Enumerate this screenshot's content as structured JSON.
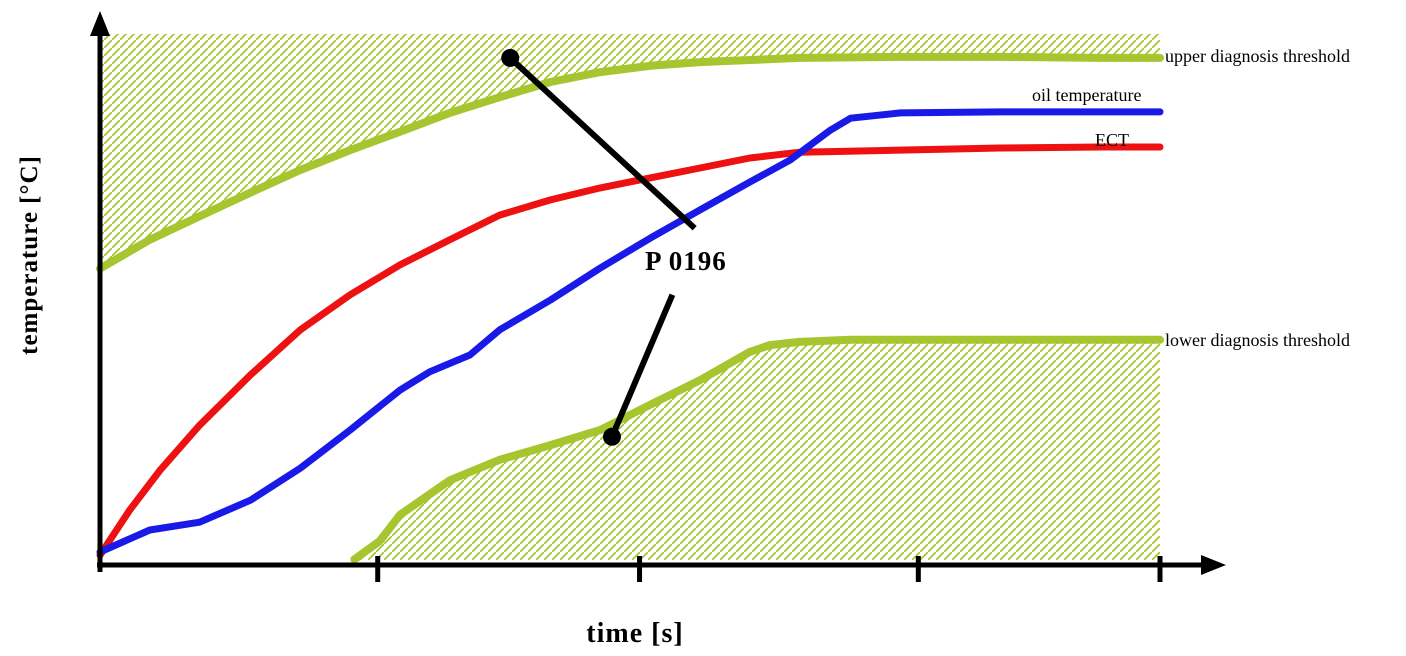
{
  "chart_data": {
    "type": "line",
    "title": "",
    "xlabel": "time [s]",
    "ylabel": "temperature [°C]",
    "xlim": [
      0,
      100
    ],
    "ylim": [
      0,
      100
    ],
    "grid": false,
    "axis_tick_labels": "none (qualitative sketch, unlabeled ticks)",
    "legend_position": "right-edge-inline-labels",
    "colors": {
      "threshold": "#a6c52f",
      "oil": "#1a1ae8",
      "ect": "#ee1111",
      "axis": "#000000"
    },
    "x_ticks": [
      26.2,
      50.9,
      77.2,
      100
    ],
    "series": [
      {
        "id": "upper-threshold",
        "label": "upper diagnosis threshold",
        "color": "#a6c52f",
        "hatch": "above",
        "points": [
          [
            0,
            56
          ],
          [
            4.7,
            61.5
          ],
          [
            9.4,
            66
          ],
          [
            14.2,
            70.5
          ],
          [
            18.9,
            74.8
          ],
          [
            23.6,
            78.6
          ],
          [
            28.3,
            82.1
          ],
          [
            33,
            85.7
          ],
          [
            37.7,
            88.7
          ],
          [
            42.5,
            91.6
          ],
          [
            47.2,
            93.5
          ],
          [
            51.9,
            94.7
          ],
          [
            56.6,
            95.4
          ],
          [
            61.3,
            95.8
          ],
          [
            66,
            96.2
          ],
          [
            75.5,
            96.4
          ],
          [
            84.9,
            96.4
          ],
          [
            94.3,
            96.2
          ],
          [
            100,
            96.2
          ]
        ]
      },
      {
        "id": "oil-temperature",
        "label": "oil temperature",
        "color": "#1a1ae8",
        "hatch": "none",
        "points": [
          [
            0,
            1.9
          ],
          [
            4.7,
            6.1
          ],
          [
            9.4,
            7.6
          ],
          [
            14.2,
            11.8
          ],
          [
            18.9,
            17.9
          ],
          [
            23.6,
            25.2
          ],
          [
            28.3,
            32.8
          ],
          [
            31.1,
            36.3
          ],
          [
            34.9,
            39.5
          ],
          [
            37.7,
            44.3
          ],
          [
            42.5,
            50
          ],
          [
            47.2,
            56.1
          ],
          [
            51.9,
            61.8
          ],
          [
            56.6,
            67.2
          ],
          [
            61.3,
            72.5
          ],
          [
            65.1,
            76.7
          ],
          [
            68.9,
            82.4
          ],
          [
            70.8,
            84.7
          ],
          [
            75.5,
            85.7
          ],
          [
            84.9,
            85.9
          ],
          [
            94.3,
            85.9
          ],
          [
            100,
            85.9
          ]
        ]
      },
      {
        "id": "ect",
        "label": "ECT",
        "color": "#ee1111",
        "hatch": "none",
        "points": [
          [
            0,
            1.3
          ],
          [
            2.8,
            9.9
          ],
          [
            5.7,
            17.6
          ],
          [
            9.4,
            26.1
          ],
          [
            14.2,
            35.7
          ],
          [
            18.9,
            44.3
          ],
          [
            23.6,
            51
          ],
          [
            28.3,
            56.7
          ],
          [
            33,
            61.5
          ],
          [
            37.7,
            66.2
          ],
          [
            42.5,
            69.1
          ],
          [
            47.2,
            71.4
          ],
          [
            51.9,
            73.3
          ],
          [
            56.6,
            75.2
          ],
          [
            61.3,
            77.1
          ],
          [
            66,
            78.2
          ],
          [
            75.5,
            78.6
          ],
          [
            84.9,
            79
          ],
          [
            94.3,
            79.2
          ],
          [
            100,
            79.2
          ]
        ]
      },
      {
        "id": "lower-threshold",
        "label": "lower diagnosis threshold",
        "color": "#a6c52f",
        "hatch": "below",
        "points": [
          [
            24,
            0.5
          ],
          [
            26.4,
            4
          ],
          [
            28.3,
            9
          ],
          [
            33,
            15.6
          ],
          [
            37.7,
            19.5
          ],
          [
            42.5,
            22.3
          ],
          [
            47.2,
            25.2
          ],
          [
            51.9,
            30
          ],
          [
            56.6,
            34.7
          ],
          [
            61.3,
            40.1
          ],
          [
            63.2,
            41.4
          ],
          [
            66,
            42
          ],
          [
            70.8,
            42.4
          ],
          [
            75.5,
            42.4
          ],
          [
            100,
            42.4
          ]
        ]
      }
    ],
    "annotation": {
      "text": "P 0196",
      "lines": [
        {
          "from": [
            38.7,
            96.2
          ],
          "to": [
            56.1,
            63.7
          ],
          "dot": "from"
        },
        {
          "from": [
            54.0,
            51.0
          ],
          "to": [
            48.3,
            23.9
          ],
          "dot": "to"
        }
      ]
    }
  }
}
